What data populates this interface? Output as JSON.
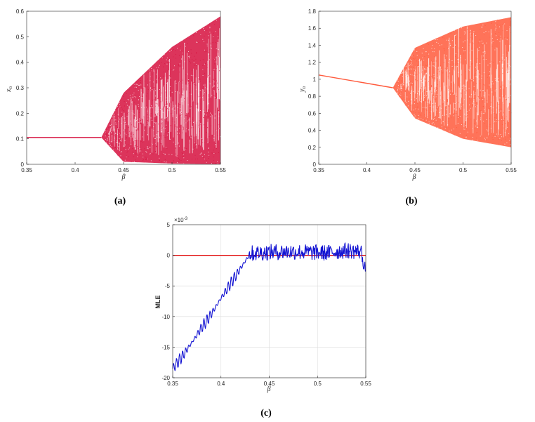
{
  "chart_data": [
    {
      "type": "scatter",
      "caption": "(a)",
      "xlabel": "β",
      "ylabel": "x",
      "ylabel_sub": "n",
      "xlim": [
        0.35,
        0.55
      ],
      "ylim": [
        0,
        0.6
      ],
      "xticks": [
        "0.35",
        "0.4",
        "0.45",
        "0.5",
        "0.55"
      ],
      "yticks": [
        "0",
        "0.1",
        "0.2",
        "0.3",
        "0.4",
        "0.5",
        "0.6"
      ],
      "grid": false,
      "color": "#d6113e",
      "fixed_point": {
        "x": [
          0.35,
          0.427
        ],
        "y": [
          0.105,
          0.105
        ]
      },
      "bifurcation": {
        "x": 0.427,
        "y": 0.105
      },
      "envelope_upper": {
        "x": [
          0.427,
          0.45,
          0.5,
          0.55
        ],
        "y": [
          0.105,
          0.28,
          0.46,
          0.58
        ]
      },
      "envelope_lower": {
        "x": [
          0.427,
          0.45,
          0.5,
          0.55
        ],
        "y": [
          0.105,
          0.01,
          0.003,
          0.0
        ]
      }
    },
    {
      "type": "scatter",
      "caption": "(b)",
      "xlabel": "β",
      "ylabel": "y",
      "ylabel_sub": "n",
      "xlim": [
        0.35,
        0.55
      ],
      "ylim": [
        0,
        1.8
      ],
      "xticks": [
        "0.35",
        "0.4",
        "0.45",
        "0.5",
        "0.55"
      ],
      "yticks": [
        "0",
        "0.2",
        "0.4",
        "0.6",
        "0.8",
        "1",
        "1.2",
        "1.4",
        "1.6",
        "1.8"
      ],
      "grid": false,
      "color": "#ff5a3c",
      "fixed_point": {
        "x": [
          0.35,
          0.427
        ],
        "y": [
          1.05,
          0.9
        ]
      },
      "bifurcation": {
        "x": 0.427,
        "y": 0.9
      },
      "envelope_upper": {
        "x": [
          0.427,
          0.45,
          0.5,
          0.55
        ],
        "y": [
          0.9,
          1.37,
          1.62,
          1.73
        ]
      },
      "envelope_lower": {
        "x": [
          0.427,
          0.45,
          0.5,
          0.55
        ],
        "y": [
          0.9,
          0.54,
          0.3,
          0.2
        ]
      }
    },
    {
      "type": "line",
      "caption": "(c)",
      "xlabel": "β",
      "ylabel": "MLE",
      "exponent_label": "×10",
      "exponent_power": "-3",
      "xlim": [
        0.35,
        0.55
      ],
      "ylim": [
        -20,
        5
      ],
      "xticks": [
        "0.35",
        "0.4",
        "0.45",
        "0.5",
        "0.55"
      ],
      "yticks": [
        "-20",
        "-15",
        "-10",
        "-5",
        "0",
        "5"
      ],
      "grid": true,
      "series": [
        {
          "color": "#1414d2",
          "x": [
            0.35,
            0.36,
            0.37,
            0.38,
            0.39,
            0.4,
            0.41,
            0.42,
            0.425,
            0.43,
            0.45,
            0.47,
            0.49,
            0.51,
            0.53,
            0.545,
            0.55
          ],
          "y": [
            -18.5,
            -16.5,
            -14.2,
            -11.8,
            -9.6,
            -7.0,
            -4.6,
            -2.2,
            -1.0,
            0.3,
            0.5,
            0.6,
            0.5,
            0.4,
            0.8,
            0.6,
            -2.5
          ]
        },
        {
          "color": "#e00000",
          "x": [
            0.35,
            0.55
          ],
          "y": [
            0,
            0
          ]
        }
      ]
    }
  ]
}
